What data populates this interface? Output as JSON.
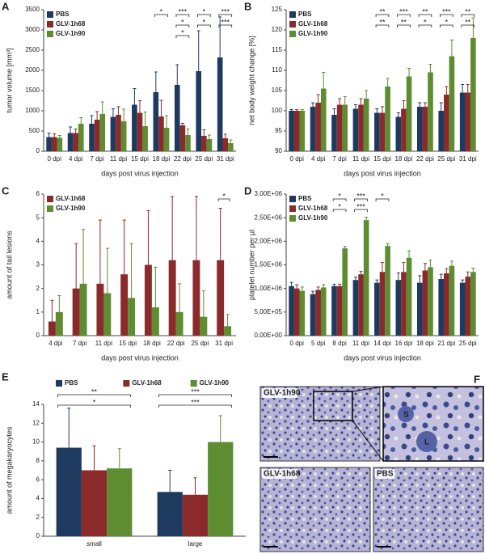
{
  "chart_data": [
    {
      "type": "bar",
      "panel": "A",
      "ylabel": "tumor volume [mm³]",
      "xlabel": "days post virus injection",
      "legend": "upper left",
      "categories": [
        "0 dpi",
        "4 dpi",
        "7 dpi",
        "11 dpi",
        "15 dpi",
        "18 dpi",
        "22 dpi",
        "25 dpi",
        "31 dpi"
      ],
      "series": [
        {
          "name": "PBS",
          "color": "#1f3a5f",
          "values": [
            350,
            450,
            680,
            850,
            1150,
            1460,
            1640,
            1980,
            2320
          ],
          "errors": [
            100,
            150,
            200,
            200,
            400,
            500,
            500,
            1000,
            1000
          ]
        },
        {
          "name": "GLV-1h68",
          "color": "#8b2a2a",
          "values": [
            350,
            450,
            780,
            900,
            950,
            860,
            640,
            380,
            320
          ],
          "errors": [
            80,
            100,
            200,
            200,
            300,
            400,
            50,
            150,
            100
          ]
        },
        {
          "name": "GLV-1h90",
          "color": "#5e8c30",
          "values": [
            330,
            680,
            920,
            740,
            620,
            580,
            400,
            300,
            200
          ],
          "errors": [
            60,
            150,
            300,
            300,
            350,
            300,
            150,
            100,
            80
          ]
        }
      ],
      "ylim": [
        0,
        3500
      ],
      "yticks": [
        0,
        500,
        1000,
        1500,
        2000,
        2500,
        3000,
        3500
      ],
      "annotations": [
        {
          "category": "18 dpi",
          "label": "*"
        },
        {
          "category": "22 dpi",
          "label": "***"
        },
        {
          "category": "22 dpi",
          "label": "*"
        },
        {
          "category": "22 dpi",
          "label": "*"
        },
        {
          "category": "25 dpi",
          "label": "*"
        },
        {
          "category": "25 dpi",
          "label": "*"
        },
        {
          "category": "31 dpi",
          "label": "***"
        },
        {
          "category": "31 dpi",
          "label": "***"
        }
      ]
    },
    {
      "type": "bar",
      "panel": "B",
      "ylabel": "net body weight change [%]",
      "xlabel": "days post virus injection",
      "legend": "upper left",
      "categories": [
        "0 dpi",
        "4 dpi",
        "7 dpi",
        "11 dpi",
        "15 dpi",
        "18 dpi",
        "22 dpi",
        "25 dpi",
        "31 dpi"
      ],
      "series": [
        {
          "name": "PBS",
          "color": "#1f3a5f",
          "values": [
            100,
            101,
            99,
            100.5,
            99.5,
            98.5,
            101,
            100,
            104.5
          ],
          "errors": [
            0.3,
            1,
            1.5,
            1,
            1,
            1,
            1,
            2,
            2
          ]
        },
        {
          "name": "GLV-1h68",
          "color": "#8b2a2a",
          "values": [
            100,
            102,
            101.5,
            101.5,
            99.5,
            100.5,
            101,
            104,
            104.5
          ],
          "errors": [
            0.3,
            2,
            1.5,
            1.5,
            1.5,
            2,
            1,
            2,
            2
          ]
        },
        {
          "name": "GLV-1h90",
          "color": "#5e8c30",
          "values": [
            100,
            105.5,
            101.5,
            103,
            106,
            108.5,
            109.5,
            113.5,
            118
          ],
          "errors": [
            0.3,
            4,
            2,
            2,
            2,
            2,
            2,
            4,
            5
          ]
        }
      ],
      "ylim": [
        90,
        125
      ],
      "yticks": [
        90,
        95,
        100,
        105,
        110,
        115,
        120,
        125
      ],
      "annotations": [
        {
          "category": "15 dpi",
          "label": "**"
        },
        {
          "category": "15 dpi",
          "label": "**"
        },
        {
          "category": "18 dpi",
          "label": "***"
        },
        {
          "category": "18 dpi",
          "label": "**"
        },
        {
          "category": "22 dpi",
          "label": "**"
        },
        {
          "category": "22 dpi",
          "label": "*"
        },
        {
          "category": "25 dpi",
          "label": "***"
        },
        {
          "category": "25 dpi",
          "label": "*"
        },
        {
          "category": "31 dpi",
          "label": "**"
        },
        {
          "category": "31 dpi",
          "label": "**"
        }
      ]
    },
    {
      "type": "bar",
      "panel": "C",
      "ylabel": "amount of tail lesions",
      "xlabel": "days post virus injection",
      "legend": "upper left",
      "categories": [
        "4 dpi",
        "7 dpi",
        "11 dpi",
        "15 dpi",
        "18 dpi",
        "22 dpi",
        "25 dpi",
        "31 dpi"
      ],
      "series": [
        {
          "name": "GLV-1h68",
          "color": "#8b2a2a",
          "values": [
            0.6,
            2,
            2.2,
            2.6,
            3,
            3.2,
            3.2,
            3.2
          ],
          "errors": [
            0.9,
            1.9,
            2.7,
            2.3,
            2.3,
            2.7,
            2.7,
            2.2
          ]
        },
        {
          "name": "GLV-1h90",
          "color": "#5e8c30",
          "values": [
            1,
            2.2,
            1.8,
            1.6,
            1.2,
            1,
            0.8,
            0.4
          ],
          "errors": [
            0.7,
            2.3,
            1.9,
            2.3,
            1.7,
            1.2,
            1.1,
            0.5
          ]
        }
      ],
      "ylim": [
        0,
        6
      ],
      "yticks": [
        0,
        1,
        2,
        3,
        4,
        5,
        6
      ],
      "annotations": [
        {
          "category": "31 dpi",
          "label": "*"
        }
      ]
    },
    {
      "type": "bar",
      "panel": "D",
      "ylabel": "platelet number per µl",
      "xlabel": "days post virus injection",
      "legend": "upper left",
      "categories": [
        "0 dpi",
        "5 dpi",
        "8 dpi",
        "11 dpi",
        "14 dpi",
        "16 dpi",
        "18 dpi",
        "21 dpi",
        "25 dpi"
      ],
      "series": [
        {
          "name": "PBS",
          "color": "#1f3a5f",
          "values": [
            1050000,
            880000,
            1050000,
            1180000,
            1120000,
            1180000,
            1120000,
            1200000,
            1120000
          ],
          "errors": [
            80000,
            60000,
            40000,
            60000,
            60000,
            150000,
            150000,
            100000,
            60000
          ]
        },
        {
          "name": "GLV-1h68",
          "color": "#8b2a2a",
          "values": [
            1000000,
            970000,
            1050000,
            1300000,
            1350000,
            1350000,
            1380000,
            1320000,
            1250000
          ],
          "errors": [
            80000,
            60000,
            40000,
            60000,
            200000,
            200000,
            150000,
            100000,
            100000
          ]
        },
        {
          "name": "GLV-1h90",
          "color": "#5e8c30",
          "values": [
            950000,
            1020000,
            1850000,
            2450000,
            1900000,
            1650000,
            1450000,
            1480000,
            1350000
          ],
          "errors": [
            80000,
            60000,
            40000,
            60000,
            50000,
            150000,
            150000,
            100000,
            80000
          ]
        }
      ],
      "ylim": [
        0,
        3000000
      ],
      "yticks": [
        {
          "value": 0,
          "label": "0,00E+00"
        },
        {
          "value": 500000,
          "label": "5,00E+05"
        },
        {
          "value": 1000000,
          "label": "1,00E+06"
        },
        {
          "value": 1500000,
          "label": "1,50E+06"
        },
        {
          "value": 2000000,
          "label": "2,00E+06"
        },
        {
          "value": 2500000,
          "label": "2,50E+06"
        },
        {
          "value": 3000000,
          "label": "3,00E+06"
        }
      ],
      "annotations": [
        {
          "category": "8 dpi",
          "label": "*"
        },
        {
          "category": "8 dpi",
          "label": "*"
        },
        {
          "category": "11 dpi",
          "label": "***"
        },
        {
          "category": "11 dpi",
          "label": "***"
        },
        {
          "category": "14 dpi",
          "label": "*"
        }
      ]
    },
    {
      "type": "bar",
      "panel": "E",
      "ylabel": "amount of megakaryocytes",
      "legend": "top",
      "categories": [
        "small",
        "large"
      ],
      "series": [
        {
          "name": "PBS",
          "color": "#1f3a5f",
          "values": [
            9.4,
            4.7
          ],
          "errors": [
            4.2,
            2.3
          ]
        },
        {
          "name": "GLV-1h68",
          "color": "#8b2a2a",
          "values": [
            7.0,
            4.4
          ],
          "errors": [
            2.6,
            1.8
          ]
        },
        {
          "name": "GLV-1h90",
          "color": "#5e8c30",
          "values": [
            7.2,
            10.0
          ],
          "errors": [
            2.1,
            2.8
          ]
        }
      ],
      "ylim": [
        0,
        14
      ],
      "yticks": [
        0,
        2,
        4,
        6,
        8,
        10,
        12,
        14
      ],
      "annotations": [
        {
          "category": "small",
          "label": "**"
        },
        {
          "category": "small",
          "label": "*"
        },
        {
          "category": "large",
          "label": "***"
        },
        {
          "category": "large",
          "label": "***"
        }
      ]
    }
  ],
  "micrographs": {
    "panel": "F",
    "top_label": "GLV-1h90",
    "inset_labels": [
      "S",
      "L"
    ],
    "bottom_left_label": "GLV-1h68",
    "bottom_right_label": "PBS"
  }
}
